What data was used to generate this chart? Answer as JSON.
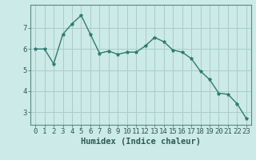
{
  "x": [
    0,
    1,
    2,
    3,
    4,
    5,
    6,
    7,
    8,
    9,
    10,
    11,
    12,
    13,
    14,
    15,
    16,
    17,
    18,
    19,
    20,
    21,
    22,
    23
  ],
  "y": [
    6.0,
    6.0,
    5.3,
    6.7,
    7.2,
    7.6,
    6.7,
    5.8,
    5.9,
    5.75,
    5.85,
    5.85,
    6.15,
    6.55,
    6.35,
    5.95,
    5.85,
    5.55,
    4.95,
    4.55,
    3.9,
    3.85,
    3.4,
    2.7
  ],
  "line_color": "#2d7d6e",
  "marker": "*",
  "marker_size": 3,
  "bg_color": "#cceae7",
  "grid_color": "#aaccca",
  "xlabel": "Humidex (Indice chaleur)",
  "xlim": [
    -0.5,
    23.5
  ],
  "ylim": [
    2.4,
    8.1
  ],
  "yticks": [
    3,
    4,
    5,
    6,
    7
  ],
  "xticks": [
    0,
    1,
    2,
    3,
    4,
    5,
    6,
    7,
    8,
    9,
    10,
    11,
    12,
    13,
    14,
    15,
    16,
    17,
    18,
    19,
    20,
    21,
    22,
    23
  ],
  "tick_fontsize": 6.5,
  "xlabel_fontsize": 7.5,
  "line_width": 1.0
}
